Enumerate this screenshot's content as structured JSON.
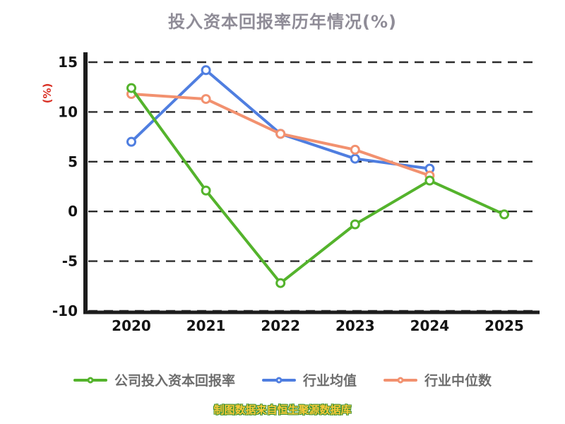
{
  "chart_data": {
    "type": "line",
    "title": "投入资本回报率历年情况(%)",
    "ylabel": "(%)",
    "xlabel": "",
    "categories": [
      "2020",
      "2021",
      "2022",
      "2023",
      "2024",
      "2025"
    ],
    "y_ticks": [
      15,
      10,
      5,
      0,
      -5,
      -10
    ],
    "ylim": [
      -10,
      15
    ],
    "grid": "dashed horizontal gridlines",
    "legend_position": "bottom",
    "series": [
      {
        "name": "公司投入资本回报率",
        "color": "#54b32c",
        "values": [
          12.4,
          2.1,
          -7.2,
          -1.3,
          3.1,
          -0.3
        ]
      },
      {
        "name": "行业均值",
        "color": "#4f7ee0",
        "values": [
          7.0,
          14.2,
          7.8,
          5.3,
          4.3,
          null
        ]
      },
      {
        "name": "行业中位数",
        "color": "#f2916f",
        "values": [
          11.8,
          11.3,
          7.8,
          6.2,
          3.6,
          null
        ]
      }
    ]
  },
  "footer": {
    "source_text": "制图数据来自恒生聚源数据库"
  },
  "styles": {
    "axis_color": "#1c1c1c",
    "grid_color": "#2b2b2b",
    "tick_label_color": "#141414",
    "title_color": "#8f8c97",
    "ylabel_color": "#d93025",
    "legend_label_color": "#6d6d6d",
    "footer_color": "#f8c83a",
    "footer_outline": "#37902f",
    "marker_fill": "#ffffff",
    "background": "#ffffff"
  }
}
